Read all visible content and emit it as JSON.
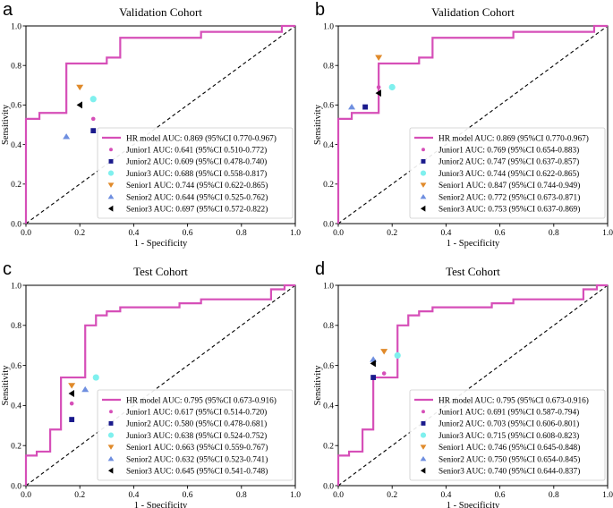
{
  "figure": {
    "xlabel": "1 - Specificity",
    "ylabel": "Sensitivity",
    "xticks": [
      "0.0",
      "0.2",
      "0.4",
      "0.6",
      "0.8",
      "1.0"
    ],
    "yticks": [
      "0.0",
      "0.2",
      "0.4",
      "0.6",
      "0.8",
      "1.0"
    ]
  },
  "colors": {
    "hr": "#d64fb8",
    "junior1": "#d64fb8",
    "junior2": "#1a1a8c",
    "junior3": "#7ff0ee",
    "senior1": "#e08a2a",
    "senior2": "#6f8fe0",
    "senior3": "#000000",
    "diagonal": "#000000"
  },
  "chart_data": [
    {
      "panel": "a",
      "type": "line",
      "title": "Validation Cohort",
      "xlabel": "1 - Specificity",
      "ylabel": "Sensitivity",
      "xlim": [
        0,
        1
      ],
      "ylim": [
        0,
        1
      ],
      "roc": {
        "x": [
          0,
          0,
          0.05,
          0.05,
          0.15,
          0.15,
          0.3,
          0.3,
          0.35,
          0.35,
          0.65,
          0.65,
          0.95,
          0.95,
          1.0
        ],
        "y": [
          0,
          0.53,
          0.53,
          0.56,
          0.56,
          0.81,
          0.81,
          0.84,
          0.84,
          0.94,
          0.94,
          0.97,
          0.97,
          1.0,
          1.0
        ]
      },
      "legend": [
        {
          "key": "hr",
          "marker": "line",
          "label": "HR model AUC: 0.869 (95%CI 0.770-0.967)"
        },
        {
          "key": "junior1",
          "marker": "circle",
          "label": "Junior1 AUC: 0.641 (95%CI 0.510-0.772)"
        },
        {
          "key": "junior2",
          "marker": "square",
          "label": "Junior2 AUC: 0.609 (95%CI 0.478-0.740)"
        },
        {
          "key": "junior3",
          "marker": "circle-big",
          "label": "Junior3 AUC: 0.688 (95%CI 0.558-0.817)"
        },
        {
          "key": "senior1",
          "marker": "tri-down",
          "label": "Senior1 AUC: 0.744 (95%CI 0.622-0.865)"
        },
        {
          "key": "senior2",
          "marker": "tri-up",
          "label": "Senior2 AUC: 0.644 (95%CI 0.525-0.762)"
        },
        {
          "key": "senior3",
          "marker": "tri-left",
          "label": "Senior3 AUC: 0.697 (95%CI 0.572-0.822)"
        }
      ],
      "points": [
        {
          "key": "junior1",
          "x": 0.25,
          "y": 0.53
        },
        {
          "key": "junior2",
          "x": 0.25,
          "y": 0.47
        },
        {
          "key": "junior3",
          "x": 0.25,
          "y": 0.63
        },
        {
          "key": "senior1",
          "x": 0.2,
          "y": 0.69
        },
        {
          "key": "senior2",
          "x": 0.15,
          "y": 0.44
        },
        {
          "key": "senior3",
          "x": 0.2,
          "y": 0.6
        }
      ]
    },
    {
      "panel": "b",
      "type": "line",
      "title": "Validation Cohort",
      "xlabel": "1 - Specificity",
      "ylabel": "Sensitivity",
      "xlim": [
        0,
        1
      ],
      "ylim": [
        0,
        1
      ],
      "roc": {
        "x": [
          0,
          0,
          0.05,
          0.05,
          0.15,
          0.15,
          0.3,
          0.3,
          0.35,
          0.35,
          0.65,
          0.65,
          0.95,
          0.95,
          1.0
        ],
        "y": [
          0,
          0.53,
          0.53,
          0.56,
          0.56,
          0.81,
          0.81,
          0.84,
          0.84,
          0.94,
          0.94,
          0.97,
          0.97,
          1.0,
          1.0
        ]
      },
      "legend": [
        {
          "key": "hr",
          "marker": "line",
          "label": "HR model AUC: 0.869 (95%CI 0.770-0.967)"
        },
        {
          "key": "junior1",
          "marker": "circle",
          "label": "Junior1 AUC: 0.769 (95%CI 0.654-0.883)"
        },
        {
          "key": "junior2",
          "marker": "square",
          "label": "Junior2 AUC: 0.747 (95%CI 0.637-0.857)"
        },
        {
          "key": "junior3",
          "marker": "circle-big",
          "label": "Junior3 AUC: 0.744 (95%CI 0.622-0.865)"
        },
        {
          "key": "senior1",
          "marker": "tri-down",
          "label": "Senior1 AUC: 0.847 (95%CI 0.744-0.949)"
        },
        {
          "key": "senior2",
          "marker": "tri-up",
          "label": "Senior2 AUC: 0.772 (95%CI 0.673-0.871)"
        },
        {
          "key": "senior3",
          "marker": "tri-left",
          "label": "Senior3 AUC: 0.753 (95%CI 0.637-0.869)"
        }
      ],
      "points": [
        {
          "key": "junior1",
          "x": 0.15,
          "y": 0.69
        },
        {
          "key": "junior2",
          "x": 0.1,
          "y": 0.59
        },
        {
          "key": "junior3",
          "x": 0.2,
          "y": 0.69
        },
        {
          "key": "senior1",
          "x": 0.15,
          "y": 0.84
        },
        {
          "key": "senior2",
          "x": 0.05,
          "y": 0.59
        },
        {
          "key": "senior3",
          "x": 0.15,
          "y": 0.66
        }
      ]
    },
    {
      "panel": "c",
      "type": "line",
      "title": "Test Cohort",
      "xlabel": "1 - Specificity",
      "ylabel": "Sensitivity",
      "xlim": [
        0,
        1
      ],
      "ylim": [
        0,
        1
      ],
      "roc": {
        "x": [
          0,
          0,
          0.04,
          0.04,
          0.09,
          0.09,
          0.13,
          0.13,
          0.22,
          0.22,
          0.26,
          0.26,
          0.3,
          0.3,
          0.35,
          0.35,
          0.57,
          0.57,
          0.65,
          0.65,
          0.91,
          0.91,
          0.96,
          0.96,
          1.0
        ],
        "y": [
          0,
          0.15,
          0.15,
          0.17,
          0.17,
          0.28,
          0.28,
          0.54,
          0.54,
          0.8,
          0.8,
          0.85,
          0.85,
          0.87,
          0.87,
          0.89,
          0.89,
          0.91,
          0.91,
          0.93,
          0.93,
          0.98,
          0.98,
          1.0,
          1.0
        ]
      },
      "legend": [
        {
          "key": "hr",
          "marker": "line",
          "label": "HR model AUC: 0.795 (95%CI 0.673-0.916)"
        },
        {
          "key": "junior1",
          "marker": "circle",
          "label": "Junior1 AUC: 0.617 (95%CI 0.514-0.720)"
        },
        {
          "key": "junior2",
          "marker": "square",
          "label": "Junior2 AUC: 0.580 (95%CI 0.478-0.681)"
        },
        {
          "key": "junior3",
          "marker": "circle-big",
          "label": "Junior3 AUC: 0.638 (95%CI 0.524-0.752)"
        },
        {
          "key": "senior1",
          "marker": "tri-down",
          "label": "Senior1 AUC: 0.663 (95%CI 0.559-0.767)"
        },
        {
          "key": "senior2",
          "marker": "tri-up",
          "label": "Senior2 AUC: 0.632 (95%CI 0.523-0.741)"
        },
        {
          "key": "senior3",
          "marker": "tri-left",
          "label": "Senior3 AUC: 0.645 (95%CI 0.541-0.748)"
        }
      ],
      "points": [
        {
          "key": "junior1",
          "x": 0.17,
          "y": 0.41
        },
        {
          "key": "junior2",
          "x": 0.17,
          "y": 0.33
        },
        {
          "key": "junior3",
          "x": 0.26,
          "y": 0.54
        },
        {
          "key": "senior1",
          "x": 0.17,
          "y": 0.5
        },
        {
          "key": "senior2",
          "x": 0.22,
          "y": 0.48
        },
        {
          "key": "senior3",
          "x": 0.17,
          "y": 0.46
        }
      ]
    },
    {
      "panel": "d",
      "type": "line",
      "title": "Test Cohort",
      "xlabel": "1 - Specificity",
      "ylabel": "Sensitivity",
      "xlim": [
        0,
        1
      ],
      "ylim": [
        0,
        1
      ],
      "roc": {
        "x": [
          0,
          0,
          0.04,
          0.04,
          0.09,
          0.09,
          0.13,
          0.13,
          0.22,
          0.22,
          0.26,
          0.26,
          0.3,
          0.3,
          0.35,
          0.35,
          0.57,
          0.57,
          0.65,
          0.65,
          0.91,
          0.91,
          0.96,
          0.96,
          1.0
        ],
        "y": [
          0,
          0.15,
          0.15,
          0.17,
          0.17,
          0.28,
          0.28,
          0.54,
          0.54,
          0.8,
          0.8,
          0.85,
          0.85,
          0.87,
          0.87,
          0.89,
          0.89,
          0.91,
          0.91,
          0.93,
          0.93,
          0.98,
          0.98,
          1.0,
          1.0
        ]
      },
      "legend": [
        {
          "key": "hr",
          "marker": "line",
          "label": "HR model AUC: 0.795 (95%CI 0.673-0.916)"
        },
        {
          "key": "junior1",
          "marker": "circle",
          "label": "Junior1 AUC: 0.691 (95%CI 0.587-0.794)"
        },
        {
          "key": "junior2",
          "marker": "square",
          "label": "Junior2 AUC: 0.703 (95%CI 0.606-0.801)"
        },
        {
          "key": "junior3",
          "marker": "circle-big",
          "label": "Junior3 AUC: 0.715 (95%CI 0.608-0.823)"
        },
        {
          "key": "senior1",
          "marker": "tri-down",
          "label": "Senior1 AUC: 0.746 (95%CI 0.645-0.848)"
        },
        {
          "key": "senior2",
          "marker": "tri-up",
          "label": "Senior2 AUC: 0.750 (95%CI 0.654-0.845)"
        },
        {
          "key": "senior3",
          "marker": "tri-left",
          "label": "Senior3 AUC: 0.740 (95%CI 0.644-0.837)"
        }
      ],
      "points": [
        {
          "key": "junior1",
          "x": 0.17,
          "y": 0.56
        },
        {
          "key": "junior2",
          "x": 0.13,
          "y": 0.54
        },
        {
          "key": "junior3",
          "x": 0.22,
          "y": 0.65
        },
        {
          "key": "senior1",
          "x": 0.17,
          "y": 0.67
        },
        {
          "key": "senior2",
          "x": 0.13,
          "y": 0.63
        },
        {
          "key": "senior3",
          "x": 0.13,
          "y": 0.61
        }
      ]
    }
  ]
}
